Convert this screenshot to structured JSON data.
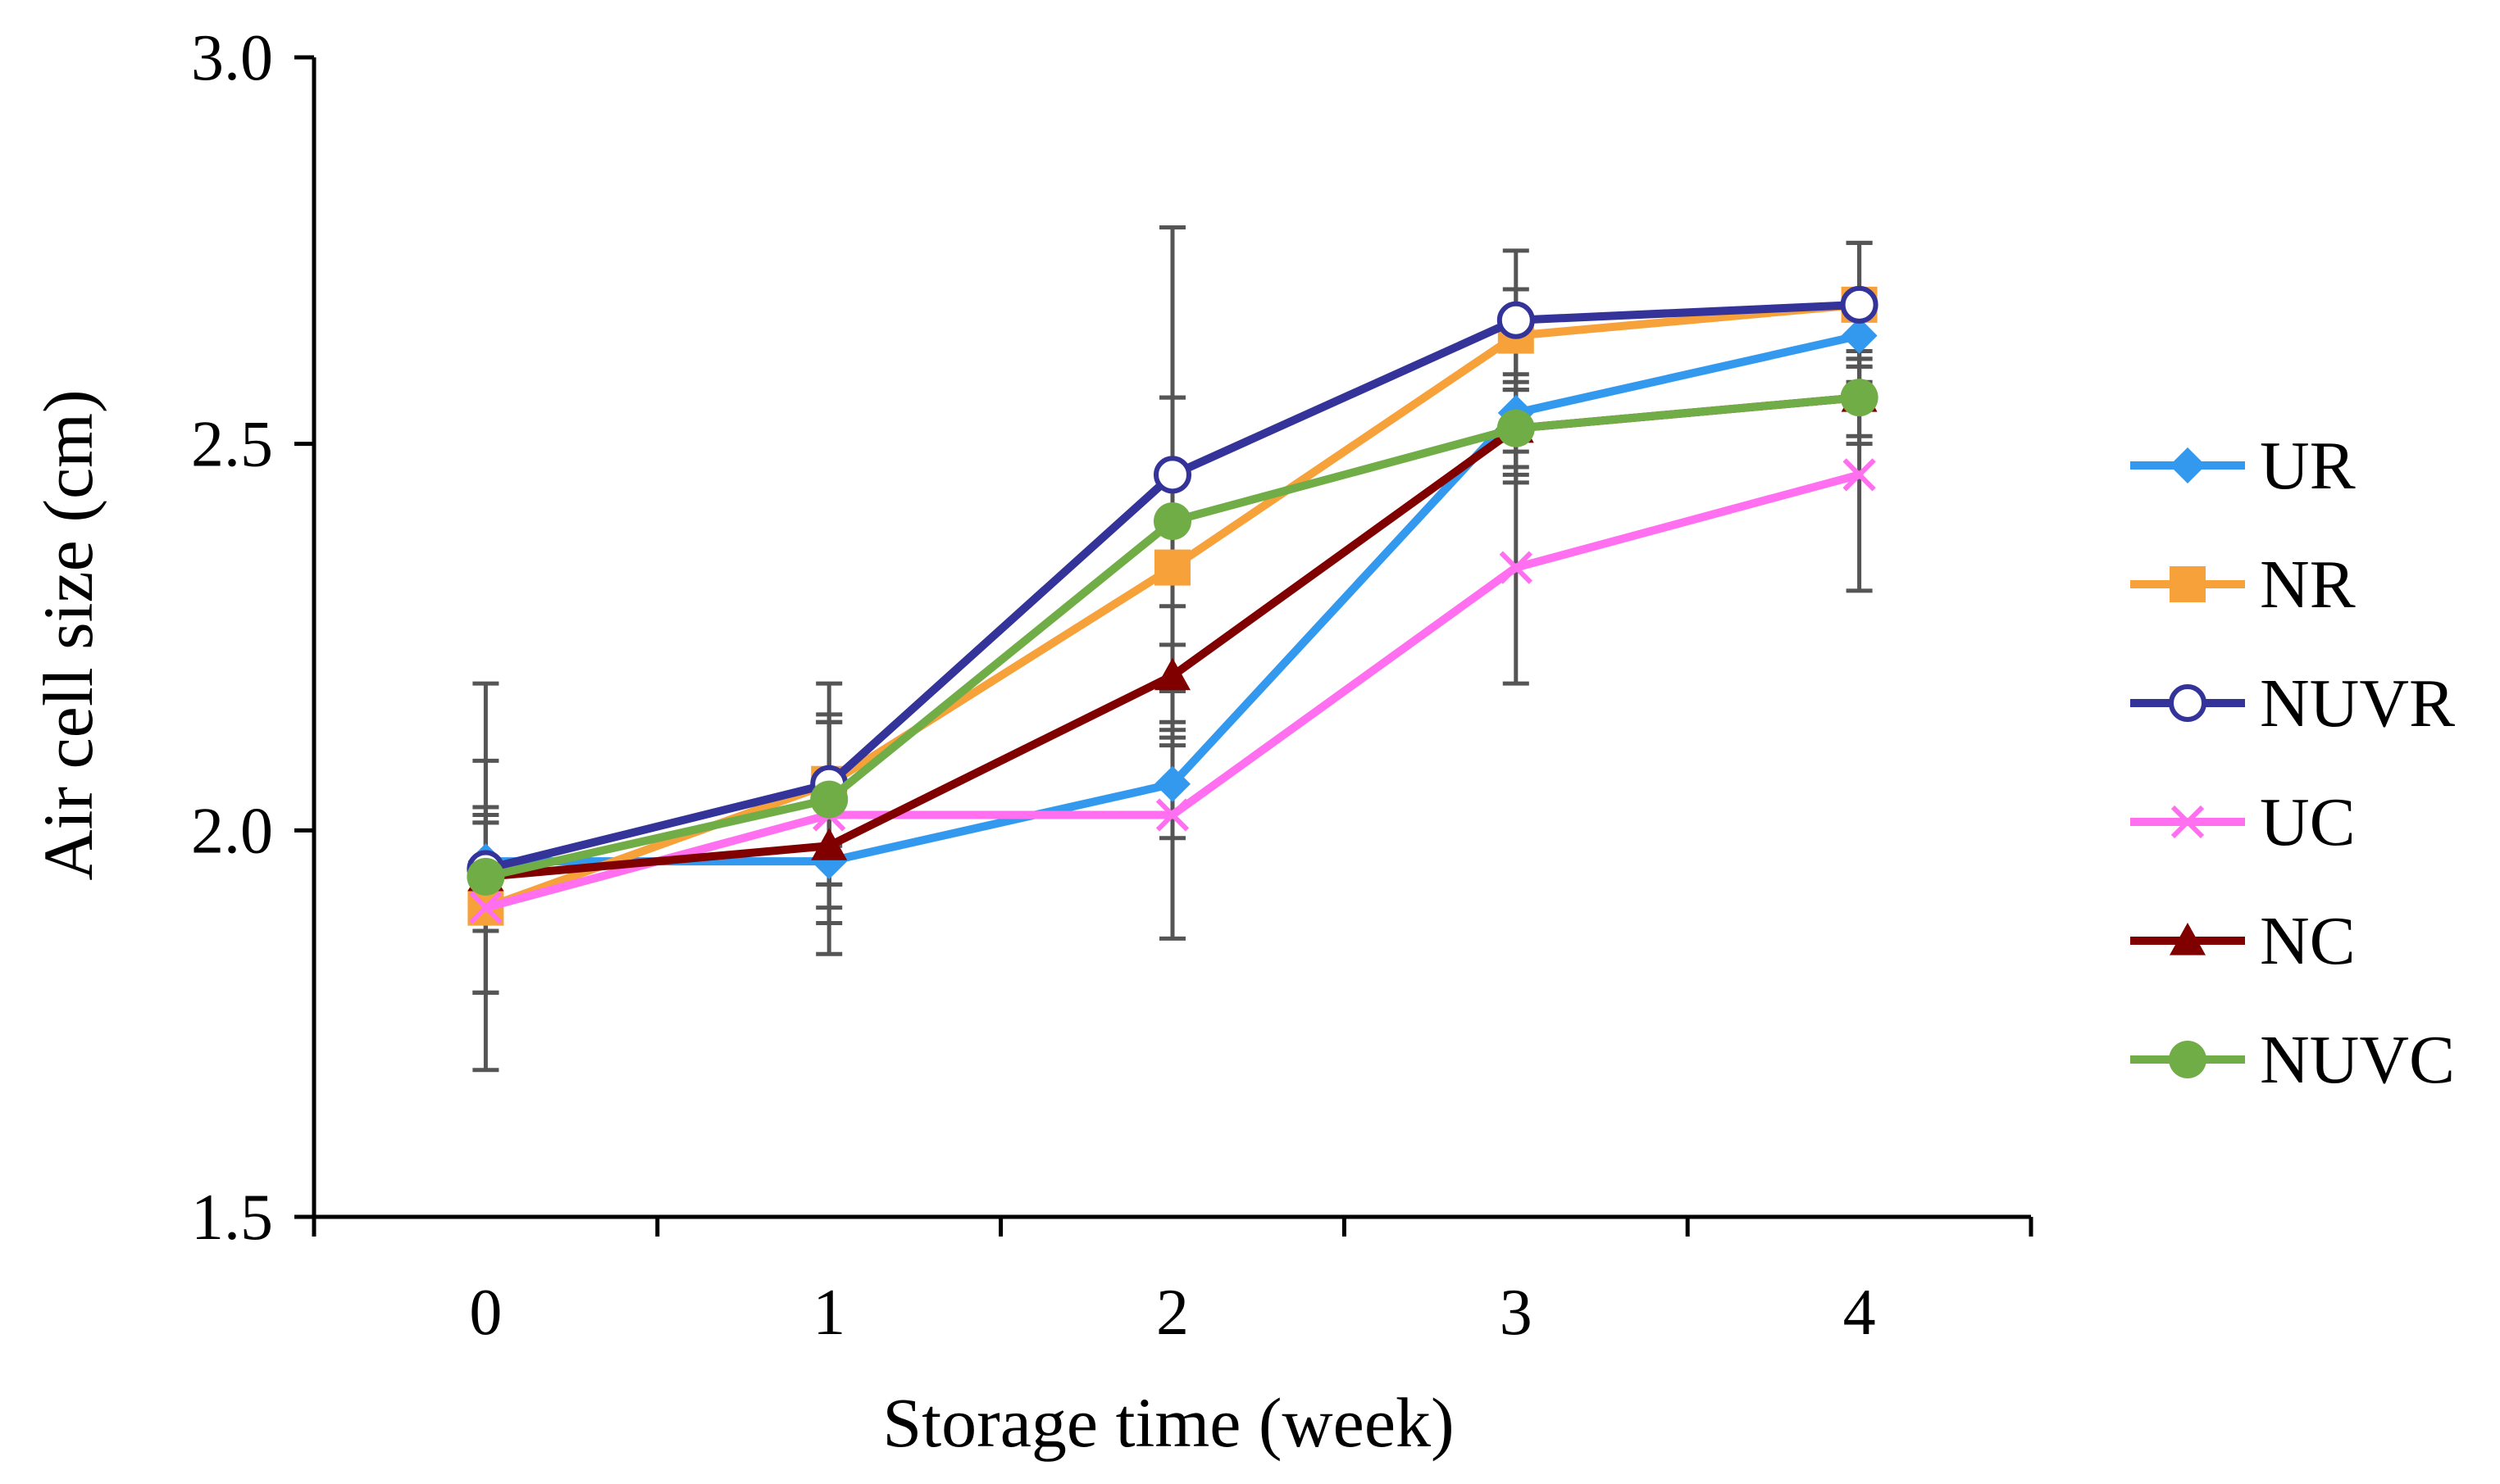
{
  "chart_data": {
    "type": "line",
    "title": "",
    "xlabel": "Storage time (week)",
    "ylabel": "Air cell size (cm)",
    "x": [
      0,
      1,
      2,
      3,
      4
    ],
    "x_tick_labels": [
      "0",
      "1",
      "2",
      "3",
      "4"
    ],
    "ylim": [
      1.5,
      3.0
    ],
    "y_ticks": [
      1.5,
      2.0,
      2.5,
      3.0
    ],
    "y_tick_labels": [
      "1.5",
      "2.0",
      "2.5",
      "3.0"
    ],
    "grid": false,
    "legend_position": "right",
    "series": [
      {
        "name": "UR",
        "color": "#3399ee",
        "marker": "diamond",
        "values": [
          1.96,
          1.96,
          2.06,
          2.54,
          2.64
        ],
        "errors": [
          0.06,
          0.12,
          0.07,
          0.08,
          0.06
        ]
      },
      {
        "name": "NR",
        "color": "#f7a13b",
        "marker": "square",
        "values": [
          1.9,
          2.06,
          2.34,
          2.64,
          2.68
        ],
        "errors": [
          0.11,
          0.08,
          0.22,
          0.06,
          0.08
        ]
      },
      {
        "name": "NUVR",
        "color": "#333399",
        "marker": "open-circle",
        "values": [
          1.95,
          2.06,
          2.46,
          2.66,
          2.68
        ],
        "errors": [
          0.08,
          0.13,
          0.32,
          0.09,
          0.08
        ]
      },
      {
        "name": "UC",
        "color": "#ff6ff0",
        "marker": "x",
        "values": [
          1.9,
          2.02,
          2.02,
          2.34,
          2.46
        ],
        "errors": [
          0.11,
          0.12,
          0.16,
          0.15,
          0.15
        ]
      },
      {
        "name": "NC",
        "color": "#800000",
        "marker": "triangle",
        "values": [
          1.94,
          1.98,
          2.2,
          2.52,
          2.56
        ],
        "errors": [
          0.15,
          0.1,
          0.09,
          0.07,
          0.05
        ]
      },
      {
        "name": "NUVC",
        "color": "#70ad47",
        "marker": "circle",
        "values": [
          1.94,
          2.04,
          2.4,
          2.52,
          2.56
        ],
        "errors": [
          0.25,
          0.11,
          0.16,
          0.05,
          0.06
        ]
      }
    ],
    "error_bar_color": "#555555"
  }
}
